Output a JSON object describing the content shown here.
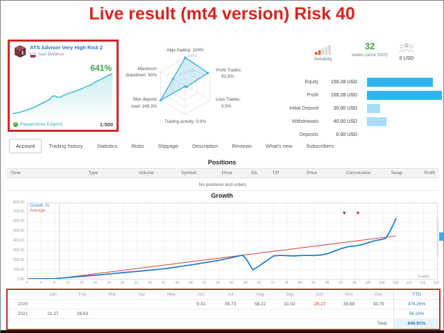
{
  "page": {
    "title": "Live result (mt4 version) Risk 40"
  },
  "colors": {
    "accent_red": "#cb2a2a",
    "title_red": "#d7251e",
    "link_blue": "#2475b8",
    "green": "#44a248",
    "bar_blue": "#2eb6f0",
    "bar_light_blue": "#a9ddf5",
    "growth_line": "#1878c8",
    "average_line": "#d05050",
    "spark_teal": "#33b8c9",
    "marker_red": "#9b1c1c"
  },
  "signal_card": {
    "title": "ATS Advisor Very High Risk 2",
    "author": "Ivan Bebikov",
    "growth_badge": "641%",
    "broker": "Pepperstone Edge03",
    "leverage": "1:500"
  },
  "radar": {
    "axis_labels": [
      [
        "Algo trading: 100%"
      ],
      [
        "Profit Trades:",
        "91.5%"
      ],
      [
        "Loss Trades:",
        "6.5%"
      ],
      [
        "Trading activity: 0.9%"
      ],
      [
        "Max deposit",
        "load: 148.3%"
      ],
      [
        "Maximum",
        "drawdown: 50%"
      ]
    ],
    "values": [
      100,
      91.5,
      6.5,
      0.9,
      148.3,
      50
    ],
    "ring_labels": [
      "100%",
      "50%"
    ]
  },
  "summary": {
    "reliability_label": "Reliability",
    "weeks_value": "32",
    "weeks_label": "weeks (since 2020)",
    "subscribers_count": "0",
    "subscribers_funds": "0 USD",
    "stats": [
      {
        "label": "Equity",
        "value": "159.28 USD",
        "bar_pct": 86,
        "bar_color": "#2eb6f0"
      },
      {
        "label": "Profit",
        "value": "169.28 USD",
        "bar_pct": 98,
        "bar_color": "#2eb6f0"
      },
      {
        "label": "Initial Deposit",
        "value": "30.00 USD",
        "bar_pct": 17,
        "bar_color": "#a9ddf5"
      },
      {
        "label": "Withdrawals",
        "value": "40.00 USD",
        "bar_pct": 25,
        "bar_color": "#a9ddf5"
      },
      {
        "label": "Deposits",
        "value": "0.00 USD",
        "bar_pct": 0,
        "bar_color": "#a9ddf5"
      }
    ]
  },
  "tabs": {
    "active": "Account",
    "items": [
      "Account",
      "Trading history",
      "Statistics",
      "Risks",
      "Slippage",
      "Description",
      "Reviews",
      "What's new",
      "Subscribers"
    ]
  },
  "positions": {
    "title": "Positions",
    "columns": [
      "Time",
      "Type",
      "Volume",
      "Symbol",
      "Price",
      "S/L",
      "T/P",
      "Price",
      "Commission",
      "Swap",
      "Profit"
    ],
    "empty_text": "No positions and orders"
  },
  "growth_section": {
    "title": "Growth",
    "x_axis_label": "Trades"
  },
  "chart_data": [
    {
      "id": "growth",
      "type": "line",
      "title": "Growth",
      "xlabel": "Trades",
      "ylabel": "Growth, %",
      "xlim": [
        0,
        120
      ],
      "ylim": [
        0,
        800
      ],
      "x_tick_step": 4,
      "y_tick_step": 100,
      "grid": true,
      "legend": [
        "Growth, %",
        "Average"
      ],
      "legend_position": "top-left",
      "start_line_x": 9.3,
      "series": [
        {
          "name": "Growth, %",
          "points": [
            [
              0,
              0
            ],
            [
              4,
              1
            ],
            [
              8,
              3
            ],
            [
              9,
              6
            ],
            [
              12,
              15
            ],
            [
              16,
              27
            ],
            [
              20,
              39
            ],
            [
              24,
              52
            ],
            [
              28,
              67
            ],
            [
              32,
              79
            ],
            [
              36,
              92
            ],
            [
              40,
              107
            ],
            [
              44,
              127
            ],
            [
              48,
              149
            ],
            [
              52,
              172
            ],
            [
              56,
              196
            ],
            [
              60,
              227
            ],
            [
              62,
              244
            ],
            [
              63,
              250
            ],
            [
              64,
              213
            ],
            [
              66,
              95
            ],
            [
              68,
              142
            ],
            [
              70,
              192
            ],
            [
              72,
              242
            ],
            [
              74,
              249
            ],
            [
              76,
              246
            ],
            [
              78,
              243
            ],
            [
              80,
              247
            ],
            [
              82,
              249
            ],
            [
              84,
              247
            ],
            [
              86,
              253
            ],
            [
              88,
              268
            ],
            [
              90,
              296
            ],
            [
              92,
              322
            ],
            [
              94,
              341
            ],
            [
              96,
              349
            ],
            [
              98,
              362
            ],
            [
              100,
              386
            ],
            [
              102,
              406
            ],
            [
              104,
              419
            ],
            [
              105,
              433
            ],
            [
              106,
              490
            ],
            [
              107,
              562
            ],
            [
              108,
              641
            ]
          ]
        },
        {
          "name": "Average",
          "points": [
            [
              8,
              0
            ],
            [
              108,
              455
            ]
          ]
        }
      ],
      "markers": [
        {
          "x": 92.8,
          "y": 680
        },
        {
          "x": 96.8,
          "y": 680
        }
      ]
    },
    {
      "id": "card_sparkline",
      "type": "line",
      "points": [
        [
          0,
          57
        ],
        [
          10,
          55
        ],
        [
          20,
          52
        ],
        [
          28,
          49
        ],
        [
          36,
          45
        ],
        [
          44,
          41
        ],
        [
          50,
          38
        ],
        [
          55,
          33
        ],
        [
          58,
          32
        ],
        [
          62,
          34
        ],
        [
          66,
          34
        ],
        [
          72,
          31
        ],
        [
          80,
          28
        ],
        [
          88,
          25
        ],
        [
          96,
          22
        ],
        [
          102,
          19
        ],
        [
          108,
          17
        ],
        [
          114,
          13
        ],
        [
          122,
          9
        ],
        [
          130,
          5
        ],
        [
          138,
          1
        ]
      ]
    }
  ],
  "monthly_table": {
    "columns": [
      "Jan",
      "Feb",
      "Mar",
      "Apr",
      "May",
      "Jun",
      "Jul",
      "Aug",
      "Sep",
      "Oct",
      "Nov",
      "Dec",
      "YTD"
    ],
    "rows": [
      {
        "year": "2020",
        "monthly": [
          "",
          "",
          "",
          "",
          "",
          "5.31",
          "55.73",
          "58.22",
          "31.02",
          "-25.27",
          "39.68",
          "33.79"
        ],
        "ytd": "374.26%"
      },
      {
        "year": "2021",
        "monthly": [
          "21.27",
          "28.83",
          "",
          "",
          "",
          "",
          "",
          "",
          "",
          "",
          "",
          ""
        ],
        "ytd": "56.23%"
      }
    ],
    "total_label": "Total:",
    "total_value": "640.91%"
  }
}
